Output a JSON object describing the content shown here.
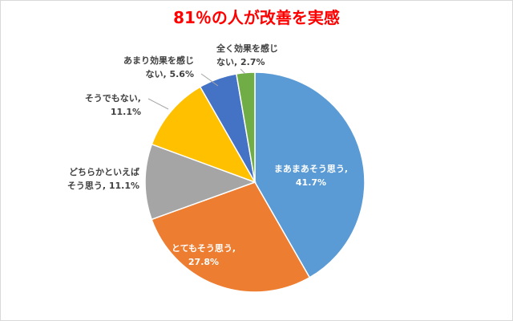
{
  "chart_data": {
    "type": "pie",
    "title": "81％の人が改善を実感",
    "title_color": "#ff0000",
    "categories": [
      "まあまあそう思う",
      "とてもそう思う",
      "どちらかといえばそう思う",
      "そうでもない",
      "あまり効果を感じない",
      "全く効果を感じない"
    ],
    "values": [
      41.7,
      27.8,
      11.1,
      11.1,
      5.6,
      2.7
    ],
    "colors": [
      "#5b9bd5",
      "#ed7d31",
      "#a5a5a5",
      "#ffc000",
      "#4472c4",
      "#70ad47"
    ],
    "data_labels": [
      {
        "line1": "まあまあそう思う,",
        "line2": "41.7%"
      },
      {
        "line1": "とてもそう思う,",
        "line2": "27.8%"
      },
      {
        "line1": "どちらかといえば",
        "line2": "そう思う, 11.1%"
      },
      {
        "line1": "そうでもない,",
        "line2": "11.1%"
      },
      {
        "line1": "あまり効果を感じ",
        "line2": "ない, 5.6%"
      },
      {
        "line1": "全く効果を感じ",
        "line2": "ない, 2.7%"
      }
    ],
    "start_angle": "12 o'clock",
    "direction": "clockwise",
    "legend": "none"
  }
}
